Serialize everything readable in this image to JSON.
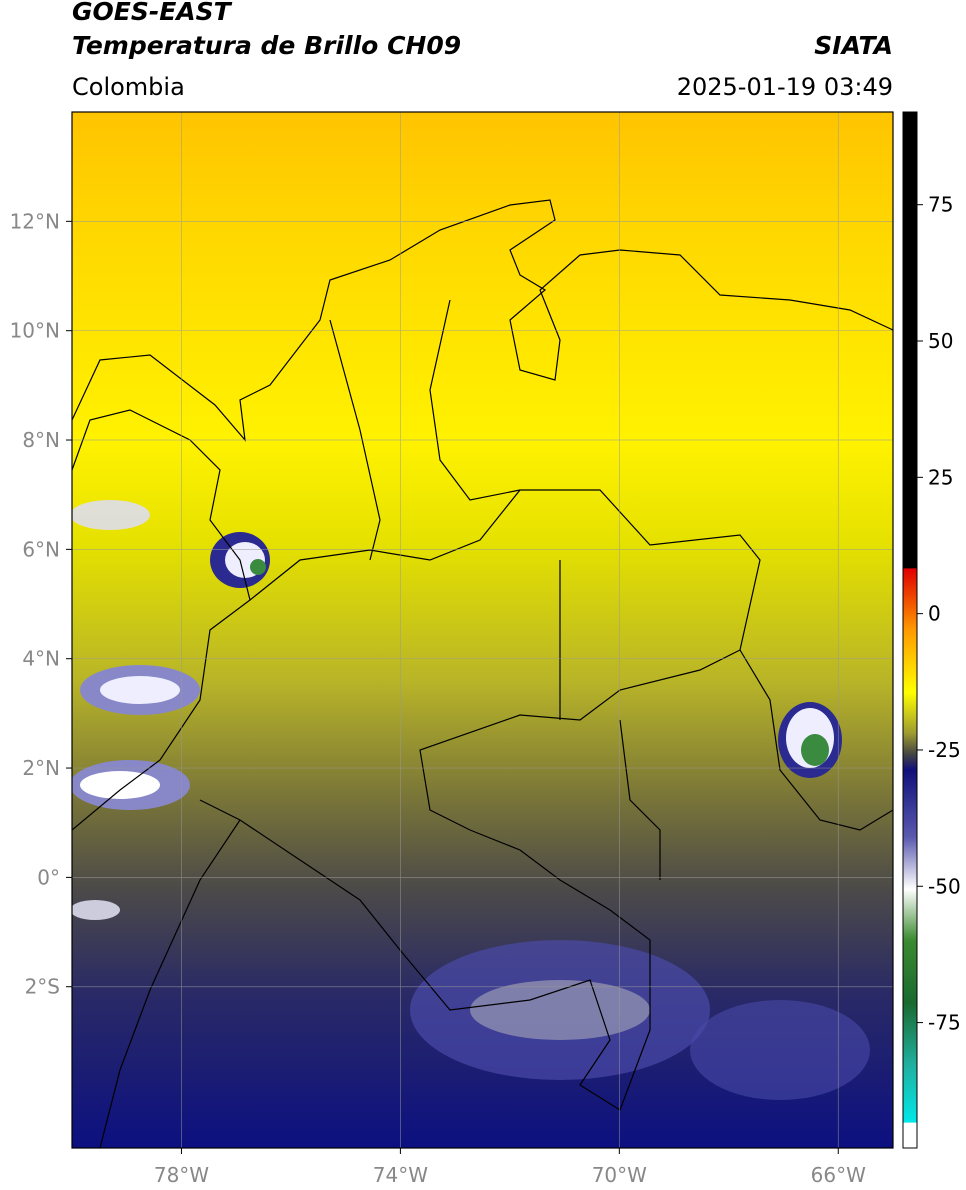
{
  "header": {
    "title": "GOES-EAST",
    "subtitle": "Temperatura de Brillo CH09",
    "source": "SIATA",
    "region": "Colombia",
    "datetime": "2025-01-19 03:49"
  },
  "map": {
    "lonlim": [
      -80,
      -65
    ],
    "latlim": [
      -4.95,
      14
    ],
    "grid": true,
    "lonticks": [
      {
        "value": -78,
        "label": "78°W"
      },
      {
        "value": -74,
        "label": "74°W"
      },
      {
        "value": -70,
        "label": "70°W"
      },
      {
        "value": -66,
        "label": "66°W"
      }
    ],
    "latticks": [
      {
        "value": 12,
        "label": "12°N"
      },
      {
        "value": 10,
        "label": "10°N"
      },
      {
        "value": 8,
        "label": "8°N"
      },
      {
        "value": 6,
        "label": "6°N"
      },
      {
        "value": 4,
        "label": "4°N"
      },
      {
        "value": 2,
        "label": "2°N"
      },
      {
        "value": 0,
        "label": "0°"
      },
      {
        "value": -2,
        "label": "2°S"
      }
    ]
  },
  "colorbar": {
    "lim": [
      -98,
      92
    ],
    "ticks": [
      75,
      50,
      25,
      0,
      -25,
      -50,
      -75
    ]
  }
}
